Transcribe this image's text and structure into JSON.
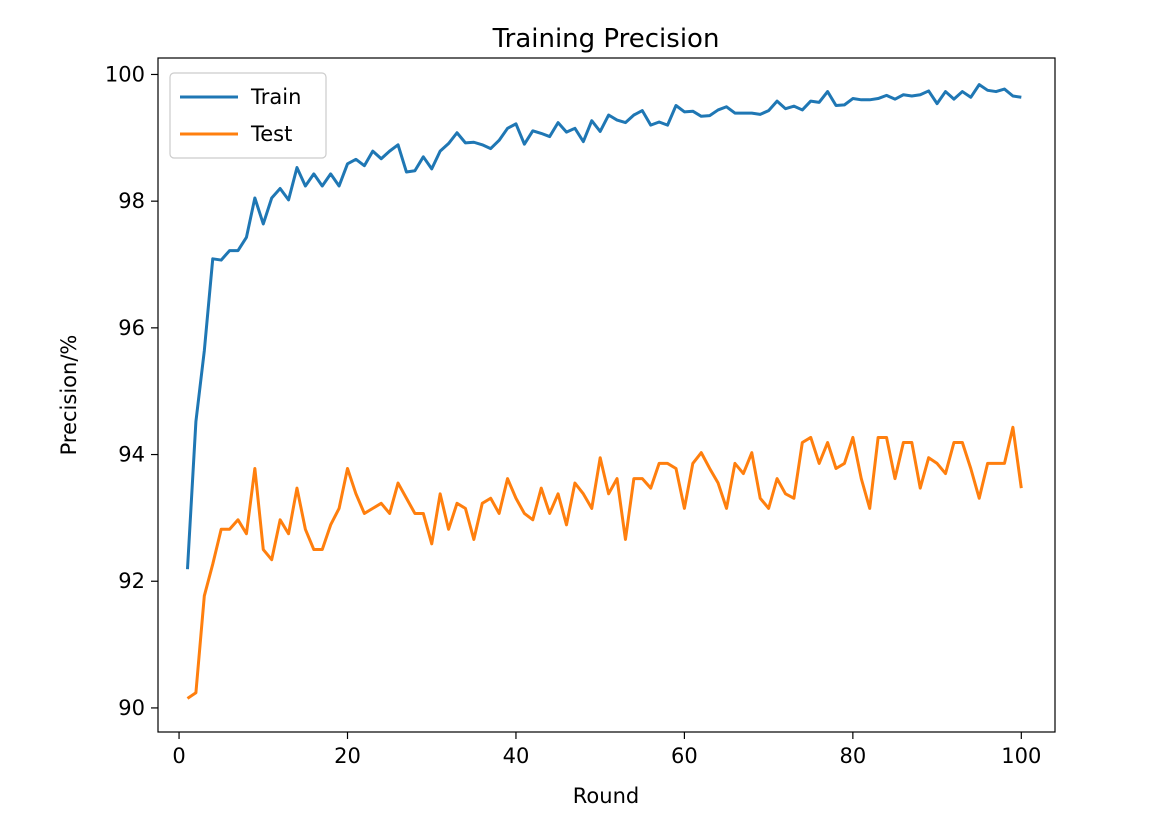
{
  "chart_data": {
    "type": "line",
    "title": "Training Precision",
    "xlabel": "Round",
    "ylabel": "Precision/%",
    "xlim": [
      -2.5,
      104
    ],
    "ylim": [
      89.62,
      100.26
    ],
    "x_ticks": [
      0,
      20,
      40,
      60,
      80,
      100
    ],
    "y_ticks": [
      90,
      92,
      94,
      96,
      98,
      100
    ],
    "grid": false,
    "legend_position": "top-left",
    "x": [
      1,
      2,
      3,
      4,
      5,
      6,
      7,
      8,
      9,
      10,
      11,
      12,
      13,
      14,
      15,
      16,
      17,
      18,
      19,
      20,
      21,
      22,
      23,
      24,
      25,
      26,
      27,
      28,
      29,
      30,
      31,
      32,
      33,
      34,
      35,
      36,
      37,
      38,
      39,
      40,
      41,
      42,
      43,
      44,
      45,
      46,
      47,
      48,
      49,
      50,
      51,
      52,
      53,
      54,
      55,
      56,
      57,
      58,
      59,
      60,
      61,
      62,
      63,
      64,
      65,
      66,
      67,
      68,
      69,
      70,
      71,
      72,
      73,
      74,
      75,
      76,
      77,
      78,
      79,
      80,
      81,
      82,
      83,
      84,
      85,
      86,
      87,
      88,
      89,
      90,
      91,
      92,
      93,
      94,
      95,
      96,
      97,
      98,
      99,
      100
    ],
    "series": [
      {
        "name": "Train",
        "color": "#1f77b4",
        "values": [
          92.19,
          94.52,
          95.64,
          97.09,
          97.07,
          97.22,
          97.22,
          97.43,
          98.05,
          97.64,
          98.05,
          98.2,
          98.02,
          98.53,
          98.24,
          98.43,
          98.24,
          98.43,
          98.24,
          98.59,
          98.66,
          98.56,
          98.79,
          98.67,
          98.79,
          98.89,
          98.46,
          98.48,
          98.7,
          98.51,
          98.79,
          98.91,
          99.08,
          98.92,
          98.93,
          98.89,
          98.83,
          98.96,
          99.15,
          99.22,
          98.9,
          99.11,
          99.07,
          99.02,
          99.24,
          99.09,
          99.15,
          98.94,
          99.27,
          99.1,
          99.36,
          99.28,
          99.24,
          99.36,
          99.43,
          99.2,
          99.25,
          99.2,
          99.51,
          99.41,
          99.42,
          99.34,
          99.35,
          99.44,
          99.49,
          99.39,
          99.39,
          99.39,
          99.37,
          99.43,
          99.58,
          99.46,
          99.5,
          99.44,
          99.58,
          99.56,
          99.73,
          99.51,
          99.52,
          99.62,
          99.6,
          99.6,
          99.62,
          99.67,
          99.61,
          99.68,
          99.66,
          99.68,
          99.74,
          99.54,
          99.73,
          99.61,
          99.73,
          99.64,
          99.84,
          99.75,
          99.73,
          99.77,
          99.66,
          99.64
        ]
      },
      {
        "name": "Test",
        "color": "#ff7f0e",
        "values": [
          90.15,
          90.24,
          91.77,
          92.27,
          92.82,
          92.82,
          92.97,
          92.75,
          93.78,
          92.5,
          92.34,
          92.97,
          92.75,
          93.47,
          92.82,
          92.5,
          92.5,
          92.89,
          93.15,
          93.78,
          93.38,
          93.07,
          93.15,
          93.23,
          93.07,
          93.55,
          93.31,
          93.07,
          93.07,
          92.59,
          93.38,
          92.82,
          93.23,
          93.15,
          92.66,
          93.23,
          93.31,
          93.07,
          93.62,
          93.31,
          93.07,
          92.97,
          93.47,
          93.07,
          93.38,
          92.89,
          93.55,
          93.38,
          93.15,
          93.95,
          93.38,
          93.62,
          92.66,
          93.62,
          93.62,
          93.47,
          93.86,
          93.86,
          93.78,
          93.15,
          93.86,
          94.03,
          93.78,
          93.55,
          93.15,
          93.86,
          93.7,
          94.03,
          93.31,
          93.15,
          93.62,
          93.38,
          93.31,
          94.19,
          94.27,
          93.86,
          94.19,
          93.78,
          93.86,
          94.27,
          93.62,
          93.15,
          94.27,
          94.27,
          93.62,
          94.19,
          94.19,
          93.47,
          93.95,
          93.86,
          93.7,
          94.19,
          94.19,
          93.78,
          93.31,
          93.86,
          93.86,
          93.86,
          94.43,
          93.47
        ]
      }
    ]
  }
}
